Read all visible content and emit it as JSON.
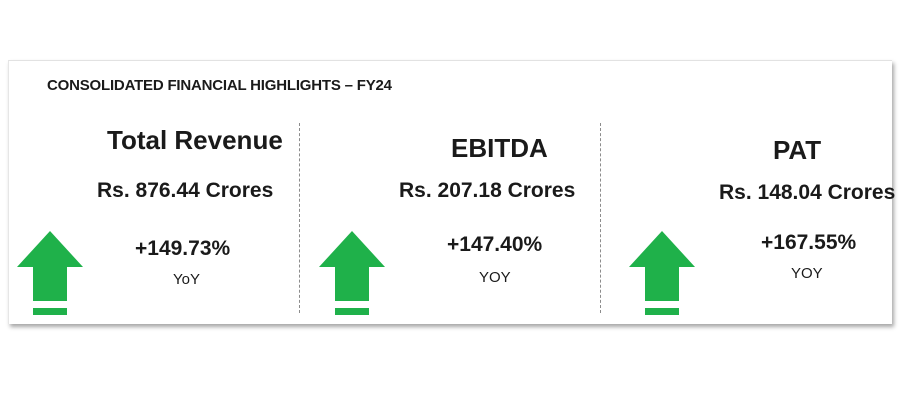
{
  "heading": "CONSOLIDATED FINANCIAL HIGHLIGHTS – FY24",
  "accent_color": "#1fb14a",
  "metrics": [
    {
      "title": "Total Revenue",
      "amount": "Rs. 876.44 Crores",
      "change": "+149.73%",
      "period": "YoY",
      "icon": "up-arrow-icon"
    },
    {
      "title": "EBITDA",
      "amount": "Rs. 207.18 Crores",
      "change": "+147.40%",
      "period": "YOY",
      "icon": "up-arrow-icon"
    },
    {
      "title": "PAT",
      "amount": "Rs. 148.04 Crores",
      "change": "+167.55%",
      "period": "YOY",
      "icon": "up-arrow-icon"
    }
  ]
}
